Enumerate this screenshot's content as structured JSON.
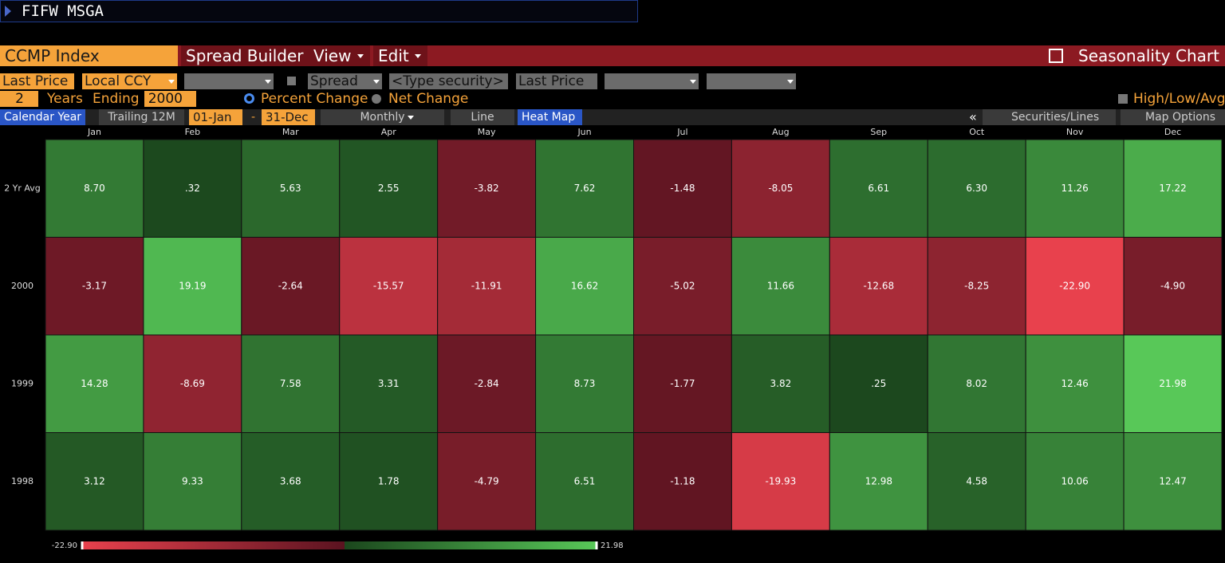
{
  "command": "FIFW MSGA",
  "toolbar": {
    "security": "CCMP Index",
    "spread_builder": "Spread Builder",
    "view": "View",
    "edit": "Edit",
    "seasonality": "Seasonality Chart"
  },
  "options": {
    "field": "Last Price",
    "currency": "Local CCY",
    "spread": "Spread",
    "type_security": "<Type security>",
    "field2": "Last Price",
    "years": "2",
    "years_label": "Years",
    "ending": "Ending",
    "end_year": "2000",
    "percent_change": "Percent Change",
    "net_change": "Net Change",
    "high_low_avg": "High/Low/Avg"
  },
  "tabs": {
    "calendar_year": "Calendar Year",
    "trailing": "Trailing 12M",
    "start": "01-Jan",
    "dash": "-",
    "end": "31-Dec",
    "period": "Monthly",
    "line": "Line",
    "heat_map": "Heat Map",
    "collapse": "«",
    "securities": "Securities/Lines",
    "map_options": "Map Options"
  },
  "chart_data": {
    "type": "heatmap",
    "categories": [
      "Jan",
      "Feb",
      "Mar",
      "Apr",
      "May",
      "Jun",
      "Jul",
      "Aug",
      "Sep",
      "Oct",
      "Nov",
      "Dec"
    ],
    "series": [
      {
        "name": "2 Yr Avg",
        "values": [
          8.7,
          0.32,
          5.63,
          2.55,
          -3.82,
          7.62,
          -1.48,
          -8.05,
          6.61,
          6.3,
          11.26,
          17.22
        ],
        "value_labels": [
          "8.70",
          ".32",
          "5.63",
          "2.55",
          "-3.82",
          "7.62",
          "-1.48",
          "-8.05",
          "6.61",
          "6.30",
          "11.26",
          "17.22"
        ]
      },
      {
        "name": "2000",
        "values": [
          -3.17,
          19.19,
          -2.64,
          -15.57,
          -11.91,
          16.62,
          -5.02,
          11.66,
          -12.68,
          -8.25,
          -22.9,
          -4.9
        ],
        "value_labels": [
          "-3.17",
          "19.19",
          "-2.64",
          "-15.57",
          "-11.91",
          "16.62",
          "-5.02",
          "11.66",
          "-12.68",
          "-8.25",
          "-22.90",
          "-4.90"
        ]
      },
      {
        "name": "1999",
        "values": [
          14.28,
          -8.69,
          7.58,
          3.31,
          -2.84,
          8.73,
          -1.77,
          3.82,
          0.25,
          8.02,
          12.46,
          21.98
        ],
        "value_labels": [
          "14.28",
          "-8.69",
          "7.58",
          "3.31",
          "-2.84",
          "8.73",
          "-1.77",
          "3.82",
          ".25",
          "8.02",
          "12.46",
          "21.98"
        ]
      },
      {
        "name": "1998",
        "values": [
          3.12,
          9.33,
          3.68,
          1.78,
          -4.79,
          6.51,
          -1.18,
          -19.93,
          12.98,
          4.58,
          10.06,
          12.47
        ],
        "value_labels": [
          "3.12",
          "9.33",
          "3.68",
          "1.78",
          "-4.79",
          "6.51",
          "-1.18",
          "-19.93",
          "12.98",
          "4.58",
          "10.06",
          "12.47"
        ]
      }
    ],
    "zlim": [
      {
        "value": -22.9,
        "label": "-22.90"
      },
      {
        "value": 21.98,
        "label": "21.98"
      }
    ],
    "colors": {
      "negative": [
        "#5a1320",
        "#e8414d"
      ],
      "positive": [
        "#1b471d",
        "#58c858"
      ]
    }
  }
}
